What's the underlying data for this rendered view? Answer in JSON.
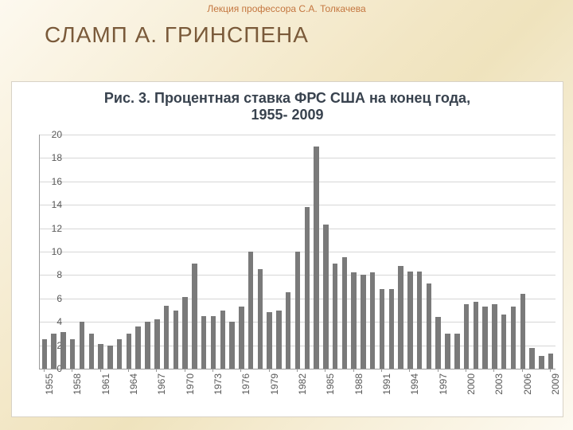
{
  "header_sub": "Лекция профессора С.А. Толкачева",
  "slide_title": "СЛАМП А. ГРИНСПЕНА",
  "chart": {
    "type": "bar",
    "title": "Рис. 3. Процентная ставка ФРС США на конец года,\n1955- 2009",
    "title_fontsize": 18,
    "title_color": "#38424e",
    "background_color": "#ffffff",
    "grid_color": "#d6d6d6",
    "axis_color": "#9a9a9a",
    "tick_font_color": "#585858",
    "tick_fontsize": 12,
    "bar_color": "#7a7a7a",
    "bar_width_ratio": 0.55,
    "ylim": [
      0,
      20
    ],
    "ytick_step": 2,
    "xtick_step": 3,
    "years": [
      1955,
      1956,
      1957,
      1958,
      1959,
      1960,
      1961,
      1962,
      1963,
      1964,
      1965,
      1966,
      1967,
      1968,
      1969,
      1970,
      1971,
      1972,
      1973,
      1974,
      1975,
      1976,
      1977,
      1978,
      1979,
      1980,
      1981,
      1982,
      1983,
      1984,
      1985,
      1986,
      1987,
      1988,
      1989,
      1990,
      1991,
      1992,
      1993,
      1994,
      1995,
      1996,
      1997,
      1998,
      1999,
      2000,
      2001,
      2002,
      2003,
      2004,
      2005,
      2006,
      2007,
      2008,
      2009
    ],
    "values": [
      2.5,
      3.0,
      3.1,
      2.5,
      4.0,
      3.0,
      2.1,
      2.0,
      2.5,
      3.0,
      3.6,
      4.0,
      4.2,
      5.4,
      5.0,
      6.1,
      9.0,
      4.5,
      4.5,
      5.0,
      4.0,
      5.3,
      10.0,
      8.5,
      4.8,
      5.0,
      6.5,
      10.0,
      13.8,
      19.0,
      12.3,
      9.0,
      9.5,
      8.2,
      8.0,
      8.2,
      6.8,
      6.8,
      8.8,
      8.3,
      8.3,
      7.3,
      4.4,
      3.0,
      3.0,
      5.5,
      5.7,
      5.3,
      5.5,
      4.6,
      5.3,
      6.4,
      1.8,
      1.1,
      1.3
    ],
    "xtick_labels": [
      "1955",
      "1958",
      "1961",
      "1964",
      "1967",
      "1970",
      "1973",
      "1976",
      "1979",
      "1982",
      "1985",
      "1988",
      "1991",
      "1994",
      "1997",
      "2000",
      "2003",
      "2006",
      "2009"
    ]
  },
  "colors": {
    "header_sub": "#c4763f",
    "slide_title": "#7a5a3a"
  }
}
